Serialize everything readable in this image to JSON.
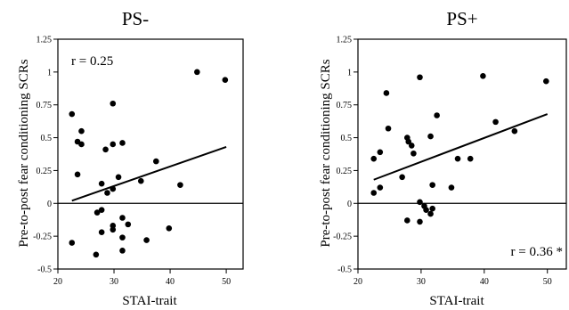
{
  "chart_data": [
    {
      "type": "scatter",
      "title": "PS-",
      "xlabel": "STAI-trait",
      "ylabel": "Pre-to-post fear conditioning SCRs",
      "xlim": [
        20,
        53
      ],
      "ylim": [
        -0.5,
        1.25
      ],
      "x_ticks": [
        "20",
        "30",
        "40",
        "50"
      ],
      "y_ticks": [
        "-0.5",
        "-0.25",
        "0",
        "0.25",
        "0.5",
        "0.75",
        "1",
        "1.25"
      ],
      "annotation": "r = 0.25",
      "annotation_position": "top-left",
      "zero_line": true,
      "grid": false,
      "points": [
        {
          "x": 22.5,
          "y": 0.68
        },
        {
          "x": 23.5,
          "y": 0.47
        },
        {
          "x": 24.2,
          "y": 0.55
        },
        {
          "x": 24.2,
          "y": 0.45
        },
        {
          "x": 23.5,
          "y": 0.22
        },
        {
          "x": 29.8,
          "y": 0.76
        },
        {
          "x": 28.5,
          "y": 0.41
        },
        {
          "x": 29.8,
          "y": 0.45
        },
        {
          "x": 31.5,
          "y": 0.46
        },
        {
          "x": 27.8,
          "y": 0.15
        },
        {
          "x": 28.8,
          "y": 0.08
        },
        {
          "x": 29.8,
          "y": 0.11
        },
        {
          "x": 30.8,
          "y": 0.2
        },
        {
          "x": 34.8,
          "y": 0.17
        },
        {
          "x": 37.5,
          "y": 0.32
        },
        {
          "x": 41.8,
          "y": 0.14
        },
        {
          "x": 44.8,
          "y": 1.0
        },
        {
          "x": 49.8,
          "y": 0.94
        },
        {
          "x": 27.0,
          "y": -0.07
        },
        {
          "x": 27.8,
          "y": -0.05
        },
        {
          "x": 26.8,
          "y": -0.39
        },
        {
          "x": 27.8,
          "y": -0.22
        },
        {
          "x": 29.8,
          "y": -0.17
        },
        {
          "x": 29.8,
          "y": -0.2
        },
        {
          "x": 31.5,
          "y": -0.11
        },
        {
          "x": 32.5,
          "y": -0.16
        },
        {
          "x": 31.5,
          "y": -0.26
        },
        {
          "x": 31.5,
          "y": -0.36
        },
        {
          "x": 35.8,
          "y": -0.28
        },
        {
          "x": 39.8,
          "y": -0.19
        },
        {
          "x": 22.5,
          "y": -0.3
        }
      ],
      "fit_line": {
        "x": [
          22.5,
          50
        ],
        "y": [
          0.02,
          0.43
        ]
      }
    },
    {
      "type": "scatter",
      "title": "PS+",
      "xlabel": "STAI-trait",
      "ylabel": "Pre-to-post fear conditioning SCRs",
      "xlim": [
        20,
        53
      ],
      "ylim": [
        -0.5,
        1.25
      ],
      "x_ticks": [
        "20",
        "30",
        "40",
        "50"
      ],
      "y_ticks": [
        "-0.5",
        "-0.25",
        "0",
        "0.25",
        "0.5",
        "0.75",
        "1",
        "1.25"
      ],
      "annotation": "r = 0.36 *",
      "annotation_position": "bottom-right",
      "zero_line": true,
      "grid": false,
      "points": [
        {
          "x": 22.5,
          "y": 0.34
        },
        {
          "x": 22.5,
          "y": 0.08
        },
        {
          "x": 23.5,
          "y": 0.39
        },
        {
          "x": 23.5,
          "y": 0.12
        },
        {
          "x": 24.5,
          "y": 0.84
        },
        {
          "x": 24.8,
          "y": 0.57
        },
        {
          "x": 27.0,
          "y": 0.2
        },
        {
          "x": 27.8,
          "y": 0.5
        },
        {
          "x": 28.0,
          "y": 0.47
        },
        {
          "x": 28.5,
          "y": 0.44
        },
        {
          "x": 28.8,
          "y": 0.38
        },
        {
          "x": 29.8,
          "y": 0.96
        },
        {
          "x": 31.5,
          "y": 0.51
        },
        {
          "x": 32.5,
          "y": 0.67
        },
        {
          "x": 31.8,
          "y": 0.14
        },
        {
          "x": 34.8,
          "y": 0.12
        },
        {
          "x": 35.8,
          "y": 0.34
        },
        {
          "x": 37.8,
          "y": 0.34
        },
        {
          "x": 39.8,
          "y": 0.97
        },
        {
          "x": 41.8,
          "y": 0.62
        },
        {
          "x": 44.8,
          "y": 0.55
        },
        {
          "x": 49.8,
          "y": 0.93
        },
        {
          "x": 27.8,
          "y": -0.13
        },
        {
          "x": 29.8,
          "y": 0.01
        },
        {
          "x": 30.5,
          "y": -0.02
        },
        {
          "x": 29.8,
          "y": -0.14
        },
        {
          "x": 30.8,
          "y": -0.05
        },
        {
          "x": 31.5,
          "y": -0.08
        },
        {
          "x": 31.8,
          "y": -0.04
        }
      ],
      "fit_line": {
        "x": [
          22.5,
          50
        ],
        "y": [
          0.18,
          0.68
        ]
      }
    }
  ]
}
